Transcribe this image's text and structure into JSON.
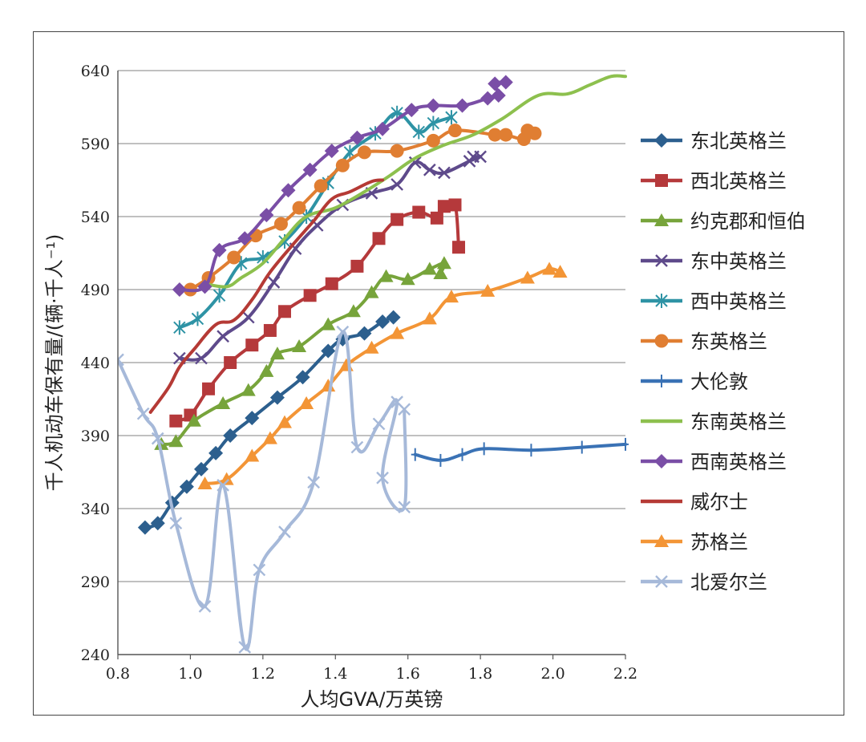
{
  "chart_data": {
    "type": "line",
    "title": "",
    "xlabel": "人均GVA/万英镑",
    "ylabel": "千人机动车保有量/(辆·千人⁻¹)",
    "xlim": [
      0.8,
      2.2
    ],
    "ylim": [
      240,
      640
    ],
    "x_ticks": [
      "0.8",
      "1.0",
      "1.2",
      "1.4",
      "1.6",
      "1.8",
      "2.0",
      "2.2"
    ],
    "y_ticks": [
      "240",
      "290",
      "340",
      "390",
      "440",
      "490",
      "540",
      "590",
      "640"
    ],
    "grid": "horizontal",
    "legend_position": "right",
    "series": [
      {
        "name": "东北英格兰",
        "color": "#2c5f8e",
        "marker": "diamond",
        "points": [
          [
            0.875,
            327
          ],
          [
            0.91,
            330
          ],
          [
            0.95,
            344
          ],
          [
            0.99,
            355
          ],
          [
            1.03,
            367
          ],
          [
            1.07,
            378
          ],
          [
            1.11,
            390
          ],
          [
            1.17,
            402
          ],
          [
            1.24,
            416
          ],
          [
            1.31,
            430
          ],
          [
            1.38,
            448
          ],
          [
            1.42,
            456
          ],
          [
            1.48,
            460
          ],
          [
            1.53,
            468
          ],
          [
            1.56,
            471
          ]
        ]
      },
      {
        "name": "西北英格兰",
        "color": "#b5393b",
        "marker": "square",
        "points": [
          [
            0.96,
            400
          ],
          [
            1.0,
            404
          ],
          [
            1.05,
            422
          ],
          [
            1.11,
            440
          ],
          [
            1.17,
            452
          ],
          [
            1.22,
            462
          ],
          [
            1.26,
            475
          ],
          [
            1.33,
            486
          ],
          [
            1.39,
            494
          ],
          [
            1.46,
            506
          ],
          [
            1.52,
            525
          ],
          [
            1.57,
            538
          ],
          [
            1.63,
            543
          ],
          [
            1.68,
            539
          ],
          [
            1.7,
            547
          ],
          [
            1.73,
            548
          ],
          [
            1.74,
            519
          ]
        ]
      },
      {
        "name": "约克郡和恒伯",
        "color": "#77a43b",
        "marker": "triangle",
        "points": [
          [
            0.92,
            384
          ],
          [
            0.96,
            386
          ],
          [
            1.01,
            400
          ],
          [
            1.09,
            412
          ],
          [
            1.16,
            421
          ],
          [
            1.21,
            434
          ],
          [
            1.24,
            446
          ],
          [
            1.3,
            451
          ],
          [
            1.38,
            466
          ],
          [
            1.45,
            475
          ],
          [
            1.5,
            488
          ],
          [
            1.54,
            499
          ],
          [
            1.6,
            497
          ],
          [
            1.66,
            504
          ],
          [
            1.7,
            508
          ],
          [
            1.69,
            501
          ]
        ]
      },
      {
        "name": "东中英格兰",
        "color": "#5e4a8b",
        "marker": "x",
        "points": [
          [
            0.97,
            443
          ],
          [
            1.03,
            443
          ],
          [
            1.09,
            458
          ],
          [
            1.16,
            471
          ],
          [
            1.23,
            495
          ],
          [
            1.29,
            518
          ],
          [
            1.35,
            534
          ],
          [
            1.42,
            548
          ],
          [
            1.5,
            556
          ],
          [
            1.57,
            562
          ],
          [
            1.62,
            577
          ],
          [
            1.66,
            572
          ],
          [
            1.7,
            570
          ],
          [
            1.77,
            578
          ],
          [
            1.8,
            581
          ],
          [
            1.78,
            581
          ]
        ]
      },
      {
        "name": "西中英格兰",
        "color": "#2e93a5",
        "marker": "asterisk",
        "points": [
          [
            0.97,
            464
          ],
          [
            1.02,
            470
          ],
          [
            1.08,
            486
          ],
          [
            1.14,
            508
          ],
          [
            1.2,
            512
          ],
          [
            1.26,
            523
          ],
          [
            1.32,
            540
          ],
          [
            1.38,
            563
          ],
          [
            1.44,
            584
          ],
          [
            1.51,
            597
          ],
          [
            1.57,
            611
          ],
          [
            1.63,
            598
          ],
          [
            1.67,
            604
          ],
          [
            1.72,
            608
          ]
        ]
      },
      {
        "name": "东英格兰",
        "color": "#e07e32",
        "marker": "circle",
        "points": [
          [
            1.0,
            490
          ],
          [
            1.05,
            498
          ],
          [
            1.12,
            512
          ],
          [
            1.18,
            527
          ],
          [
            1.25,
            535
          ],
          [
            1.3,
            546
          ],
          [
            1.36,
            561
          ],
          [
            1.42,
            575
          ],
          [
            1.48,
            584
          ],
          [
            1.57,
            585
          ],
          [
            1.67,
            592
          ],
          [
            1.73,
            599
          ],
          [
            1.84,
            596
          ],
          [
            1.87,
            596
          ],
          [
            1.92,
            593
          ],
          [
            1.95,
            597
          ],
          [
            1.93,
            599
          ]
        ]
      },
      {
        "name": "大伦敦",
        "color": "#3a72b5",
        "marker": "plus",
        "points": [
          [
            1.62,
            377
          ],
          [
            1.69,
            373
          ],
          [
            1.75,
            377
          ],
          [
            1.81,
            381
          ],
          [
            1.94,
            380
          ],
          [
            2.08,
            382
          ],
          [
            2.2,
            384
          ]
        ]
      },
      {
        "name": "东南英格兰",
        "color": "#8dc04e",
        "marker": "none",
        "points": [
          [
            1.04,
            494
          ],
          [
            1.1,
            492
          ],
          [
            1.14,
            498
          ],
          [
            1.2,
            508
          ],
          [
            1.26,
            525
          ],
          [
            1.32,
            540
          ],
          [
            1.4,
            546
          ],
          [
            1.48,
            557
          ],
          [
            1.55,
            568
          ],
          [
            1.62,
            580
          ],
          [
            1.7,
            589
          ],
          [
            1.78,
            596
          ],
          [
            1.86,
            607
          ],
          [
            1.96,
            623
          ],
          [
            2.04,
            624
          ],
          [
            2.1,
            630
          ],
          [
            2.16,
            636
          ],
          [
            2.2,
            636
          ]
        ]
      },
      {
        "name": "西南英格兰",
        "color": "#7a4ea6",
        "marker": "diamond",
        "points": [
          [
            0.97,
            490
          ],
          [
            1.04,
            492
          ],
          [
            1.08,
            517
          ],
          [
            1.15,
            525
          ],
          [
            1.21,
            541
          ],
          [
            1.27,
            558
          ],
          [
            1.33,
            572
          ],
          [
            1.39,
            585
          ],
          [
            1.46,
            594
          ],
          [
            1.53,
            600
          ],
          [
            1.61,
            613
          ],
          [
            1.67,
            616
          ],
          [
            1.75,
            616
          ],
          [
            1.82,
            621
          ],
          [
            1.85,
            623
          ],
          [
            1.84,
            631
          ],
          [
            1.87,
            632
          ]
        ]
      },
      {
        "name": "威尔士",
        "color": "#b53a35",
        "marker": "none",
        "points": [
          [
            0.89,
            406
          ],
          [
            0.94,
            423
          ],
          [
            0.97,
            437
          ],
          [
            1.01,
            449
          ],
          [
            1.07,
            466
          ],
          [
            1.12,
            469
          ],
          [
            1.17,
            483
          ],
          [
            1.22,
            502
          ],
          [
            1.28,
            520
          ],
          [
            1.34,
            537
          ],
          [
            1.39,
            552
          ],
          [
            1.44,
            557
          ],
          [
            1.5,
            564
          ],
          [
            1.53,
            565
          ]
        ]
      },
      {
        "name": "苏格兰",
        "color": "#f39536",
        "marker": "triangle",
        "points": [
          [
            1.04,
            357
          ],
          [
            1.1,
            360
          ],
          [
            1.17,
            376
          ],
          [
            1.22,
            388
          ],
          [
            1.26,
            399
          ],
          [
            1.32,
            412
          ],
          [
            1.38,
            424
          ],
          [
            1.43,
            438
          ],
          [
            1.5,
            450
          ],
          [
            1.57,
            460
          ],
          [
            1.66,
            470
          ],
          [
            1.72,
            485
          ],
          [
            1.82,
            489
          ],
          [
            1.93,
            498
          ],
          [
            1.99,
            504
          ],
          [
            2.02,
            502
          ]
        ]
      },
      {
        "name": "北爱尔兰",
        "color": "#a6b9d9",
        "marker": "x",
        "points": [
          [
            0.8,
            442
          ],
          [
            0.87,
            405
          ],
          [
            0.91,
            388
          ],
          [
            0.96,
            330
          ],
          [
            1.04,
            273
          ],
          [
            1.09,
            356
          ],
          [
            1.15,
            245
          ],
          [
            1.19,
            298
          ],
          [
            1.26,
            324
          ],
          [
            1.34,
            358
          ],
          [
            1.42,
            461
          ],
          [
            1.46,
            382
          ],
          [
            1.52,
            398
          ],
          [
            1.57,
            413
          ],
          [
            1.53,
            361
          ],
          [
            1.59,
            341
          ],
          [
            1.59,
            408
          ]
        ]
      }
    ]
  }
}
